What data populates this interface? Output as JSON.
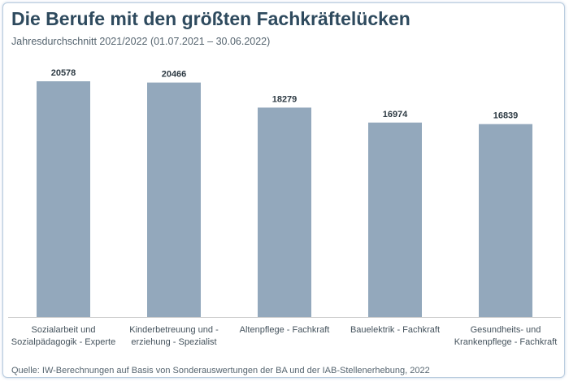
{
  "header": {
    "title": "Die Berufe mit den größten Fachkräftelücken",
    "subtitle": "Jahresdurchschnitt 2021/2022 (01.07.2021 – 30.06.2022)"
  },
  "footer": {
    "source": "Quelle: IW-Berechnungen auf Basis von Sonderauswertungen der BA und der IAB-Stellenerhebung, 2022"
  },
  "chart_data": {
    "type": "bar",
    "title": "Die Berufe mit den größten Fachkräftelücken",
    "subtitle": "Jahresdurchschnitt 2021/2022 (01.07.2021 – 30.06.2022)",
    "categories": [
      [
        "Sozialarbeit und",
        "Sozialpädagogik - Experte"
      ],
      [
        "Kinderbetreuung und -",
        "erziehung - Spezialist"
      ],
      [
        "Altenpflege - Fachkraft"
      ],
      [
        "Bauelektrik - Fachkraft"
      ],
      [
        "Gesundheits- und",
        "Krankenpflege - Fachkraft"
      ]
    ],
    "values": [
      20578,
      20466,
      18279,
      16974,
      16839
    ],
    "value_labels": [
      "20578",
      "20466",
      "18279",
      "16974",
      "16839"
    ],
    "xlabel": "",
    "ylabel": "",
    "ylim": [
      0,
      20578
    ],
    "grid": false,
    "legend": "none",
    "colors": {
      "bar": "#93a8bc",
      "title": "#2e4a5e"
    }
  }
}
